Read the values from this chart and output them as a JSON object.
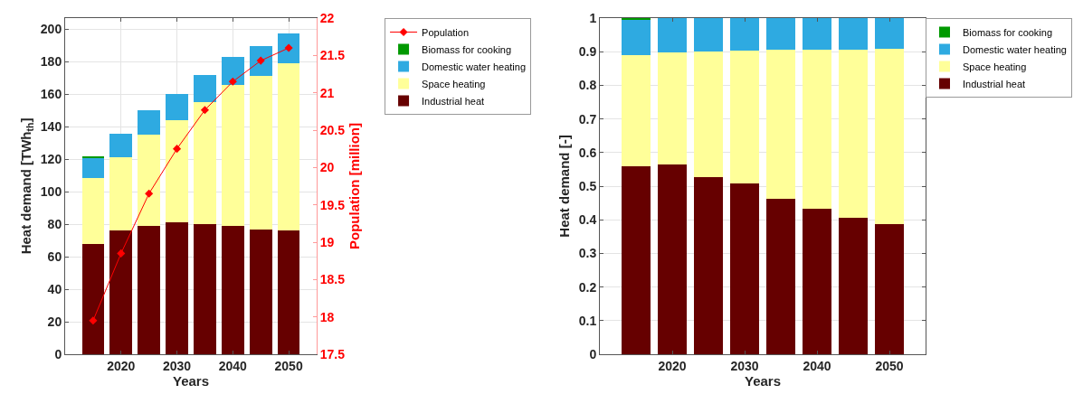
{
  "chart_data": [
    {
      "type": "bar",
      "stacked": true,
      "xlabel": "Years",
      "ylabel": "Heat demand [TWh$_{th}$]",
      "y2label": "Population [million]",
      "x": [
        2015,
        2020,
        2025,
        2030,
        2035,
        2040,
        2045,
        2050
      ],
      "series": [
        {
          "name": "Industrial heat",
          "color": "#660000",
          "values": [
            68,
            76.5,
            79,
            81,
            80,
            79,
            77,
            76
          ]
        },
        {
          "name": "Space heating",
          "color": "#ffff99",
          "values": [
            40.5,
            45,
            56,
            63,
            75.5,
            87,
            94.5,
            103
          ]
        },
        {
          "name": "Domestic water heating",
          "color": "#2eaae1",
          "values": [
            12.5,
            14,
            15,
            16,
            16.5,
            17,
            18,
            18.5
          ]
        },
        {
          "name": "Biomass for cooking",
          "color": "#009900",
          "values": [
            1,
            0,
            0,
            0,
            0,
            0,
            0,
            0
          ]
        },
        {
          "name": "Population",
          "type": "line",
          "axis": "y2",
          "color": "#ff0000",
          "marker": "diamond",
          "values": [
            17.95,
            18.85,
            19.65,
            20.25,
            20.77,
            21.15,
            21.43,
            21.6
          ]
        }
      ],
      "xlim": [
        2010,
        2055
      ],
      "xticks": [
        2020,
        2030,
        2040,
        2050
      ],
      "ylim": [
        0,
        207
      ],
      "yticks": [
        0,
        20,
        40,
        60,
        80,
        100,
        120,
        140,
        160,
        180,
        200
      ],
      "y2lim": [
        17.5,
        22
      ],
      "y2ticks": [
        17.5,
        18,
        18.5,
        19,
        19.5,
        20,
        20.5,
        21,
        21.5,
        22
      ],
      "grid": true,
      "legend": "top right"
    },
    {
      "type": "bar",
      "stacked": true,
      "xlabel": "Years",
      "ylabel": "Heat demand [-]",
      "x": [
        2015,
        2020,
        2025,
        2030,
        2035,
        2040,
        2045,
        2050
      ],
      "series": [
        {
          "name": "Industrial heat",
          "color": "#660000",
          "values": [
            0.56,
            0.565,
            0.527,
            0.507,
            0.463,
            0.432,
            0.406,
            0.386
          ]
        },
        {
          "name": "Space heating",
          "color": "#ffff99",
          "values": [
            0.33,
            0.332,
            0.374,
            0.395,
            0.442,
            0.475,
            0.501,
            0.522
          ]
        },
        {
          "name": "Domestic water heating",
          "color": "#2eaae1",
          "values": [
            0.105,
            0.103,
            0.099,
            0.098,
            0.095,
            0.093,
            0.093,
            0.092
          ]
        },
        {
          "name": "Biomass for cooking",
          "color": "#009900",
          "values": [
            0.005,
            0,
            0,
            0,
            0,
            0,
            0,
            0
          ]
        }
      ],
      "xlim": [
        2010,
        2055
      ],
      "xticks": [
        2020,
        2030,
        2040,
        2050
      ],
      "ylim": [
        0,
        1
      ],
      "yticks": [
        0,
        0.1,
        0.2,
        0.3,
        0.4,
        0.5,
        0.6,
        0.7,
        0.8,
        0.9,
        1
      ],
      "grid": true,
      "legend": "top right"
    }
  ]
}
